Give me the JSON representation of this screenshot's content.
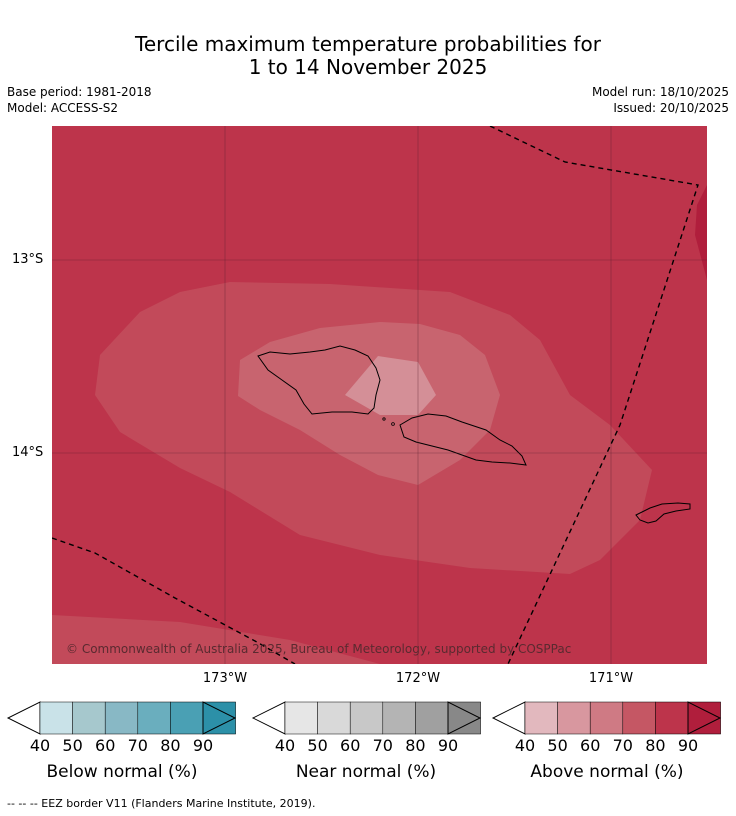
{
  "title_line1": "Tercile maximum temperature probabilities for",
  "title_line2": "1 to 14 November 2025",
  "base_period": "Base period: 1981-2018",
  "model": "Model: ACCESS-S2",
  "model_run": "Model run: 18/10/2025",
  "issued": "Issued: 20/10/2025",
  "lat_labels": [
    "13°S",
    "14°S"
  ],
  "lon_labels": [
    "173°W",
    "172°W",
    "171°W"
  ],
  "copyright": "© Commonwealth of Australia 2025, Bureau of Meteorology, supported by COSPPac",
  "colorbars": [
    {
      "label": "Below normal (%)",
      "ticks": [
        "40",
        "50",
        "60",
        "70",
        "80",
        "90"
      ],
      "colors": [
        "#c9e2e8",
        "#a6c8cd",
        "#88b8c5",
        "#6aaebe",
        "#4aa0b4",
        "#2c90a8"
      ]
    },
    {
      "label": "Near normal (%)",
      "ticks": [
        "40",
        "50",
        "60",
        "70",
        "80",
        "90"
      ],
      "colors": [
        "#e6e6e6",
        "#d9d9d9",
        "#c8c8c8",
        "#b4b4b4",
        "#a0a0a0",
        "#888888"
      ]
    },
    {
      "label": "Above normal (%)",
      "ticks": [
        "40",
        "50",
        "60",
        "70",
        "80",
        "90"
      ],
      "colors": [
        "#e2b8be",
        "#d8979f",
        "#cf7a84",
        "#c55764",
        "#bd344b",
        "#b01e3c"
      ]
    }
  ],
  "footnote": "-- -- -- EEZ border V11 (Flanders Marine Institute, 2019).",
  "colors": {
    "above_80": "#bd344b",
    "above_70": "#c24a5a",
    "above_60": "#c8646f",
    "above_50": "#d48f97",
    "above_90": "#b01e3c"
  }
}
